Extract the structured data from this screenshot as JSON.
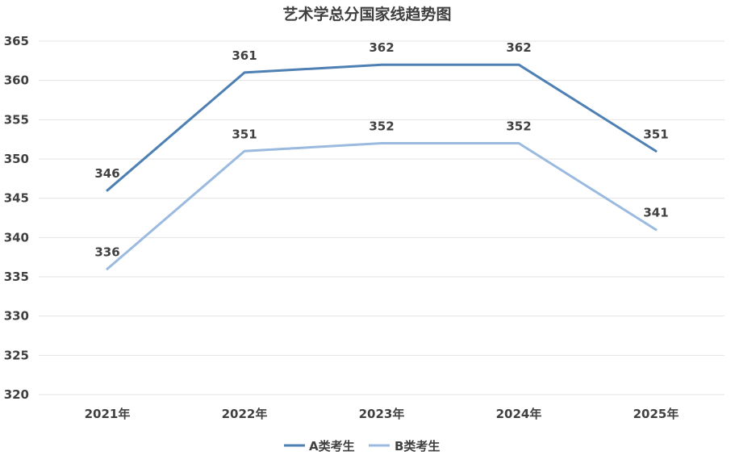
{
  "chart_data": {
    "type": "line",
    "title": "艺术学总分国家线趋势图",
    "categories": [
      "2021年",
      "2022年",
      "2023年",
      "2024年",
      "2025年"
    ],
    "series": [
      {
        "name": "A类考生",
        "values": [
          346,
          361,
          362,
          362,
          351
        ],
        "color": "#4e80b3"
      },
      {
        "name": "B类考生",
        "values": [
          336,
          351,
          352,
          352,
          341
        ],
        "color": "#9bbae0"
      }
    ],
    "ylim": [
      320,
      365
    ],
    "yticks": [
      "320",
      "325",
      "330",
      "335",
      "340",
      "345",
      "350",
      "355",
      "360",
      "365"
    ],
    "grid": true,
    "legend": "bottom",
    "data_labels": true
  }
}
